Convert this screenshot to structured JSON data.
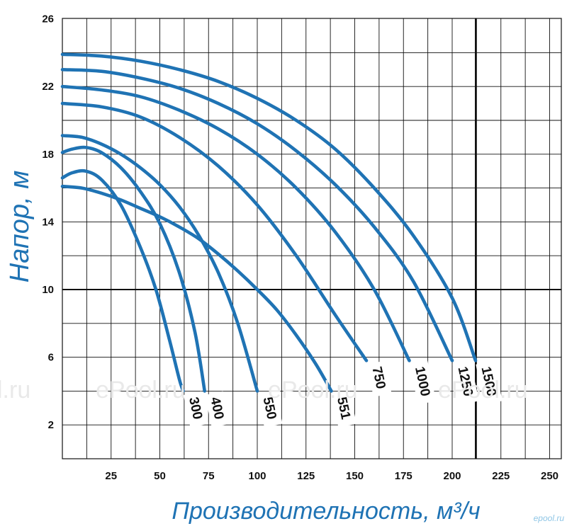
{
  "chart_data": {
    "type": "line",
    "title": "",
    "xlabel": "Производительность, м³/ч",
    "ylabel": "Напор, м",
    "xlim": [
      0,
      250
    ],
    "ylim": [
      0,
      26
    ],
    "x_ticks": [
      "25",
      "50",
      "75",
      "100",
      "125",
      "150",
      "175",
      "200",
      "225",
      "250"
    ],
    "y_ticks": [
      "2",
      "6",
      "10",
      "14",
      "18",
      "22",
      "26"
    ],
    "grid": true,
    "highlight_lines": {
      "y": 10,
      "x": 212
    },
    "series": [
      {
        "name": "300",
        "x": [
          0,
          5,
          12,
          20,
          30,
          40,
          48,
          55,
          60,
          62
        ],
        "y": [
          16.6,
          16.9,
          17.0,
          16.5,
          15.0,
          12.5,
          10.0,
          7.0,
          4.7,
          4.0
        ]
      },
      {
        "name": "400",
        "x": [
          0,
          5,
          12,
          20,
          30,
          40,
          50,
          60,
          68,
          73
        ],
        "y": [
          18.1,
          18.3,
          18.4,
          18.1,
          17.2,
          15.8,
          13.9,
          11.0,
          7.5,
          4.0
        ]
      },
      {
        "name": "550",
        "x": [
          0,
          10,
          20,
          30,
          40,
          50,
          60,
          70,
          80,
          90,
          100
        ],
        "y": [
          19.1,
          19.0,
          18.6,
          18.0,
          17.2,
          16.2,
          14.9,
          13.2,
          11.0,
          8.0,
          4.0
        ]
      },
      {
        "name": "551",
        "x": [
          0,
          10,
          20,
          30,
          40,
          50,
          60,
          70,
          80,
          90,
          100,
          110,
          120,
          130,
          138
        ],
        "y": [
          16.1,
          16.0,
          15.7,
          15.3,
          14.8,
          14.3,
          13.7,
          13.0,
          12.1,
          11.1,
          10.0,
          8.8,
          7.3,
          5.6,
          4.0
        ]
      },
      {
        "name": "750",
        "x": [
          0,
          20,
          40,
          60,
          80,
          100,
          120,
          140,
          156
        ],
        "y": [
          21.0,
          20.8,
          20.2,
          19.0,
          17.3,
          15.0,
          12.0,
          8.5,
          5.8
        ]
      },
      {
        "name": "1000",
        "x": [
          0,
          20,
          40,
          60,
          80,
          100,
          120,
          140,
          160,
          178
        ],
        "y": [
          22.0,
          21.8,
          21.4,
          20.6,
          19.5,
          18.0,
          16.0,
          13.4,
          10.0,
          5.8
        ]
      },
      {
        "name": "1250",
        "x": [
          0,
          20,
          40,
          60,
          80,
          100,
          120,
          140,
          160,
          180,
          200
        ],
        "y": [
          23.0,
          22.9,
          22.5,
          21.9,
          21.0,
          19.8,
          18.2,
          16.2,
          13.7,
          10.5,
          5.8
        ]
      },
      {
        "name": "1500",
        "x": [
          0,
          20,
          40,
          60,
          80,
          100,
          120,
          140,
          160,
          180,
          200,
          212
        ],
        "y": [
          23.9,
          23.8,
          23.5,
          23.0,
          22.3,
          21.3,
          20.0,
          18.3,
          16.0,
          13.2,
          9.5,
          5.8
        ]
      }
    ]
  },
  "watermarks": [
    "l.ru",
    "ePool.ru",
    "ePool.ru",
    "ePool.ru"
  ],
  "corner_mark": "epool.ru",
  "colors": {
    "curve": "#1f73b4",
    "grid": "#111111",
    "axis_title": "#1f73b4"
  }
}
